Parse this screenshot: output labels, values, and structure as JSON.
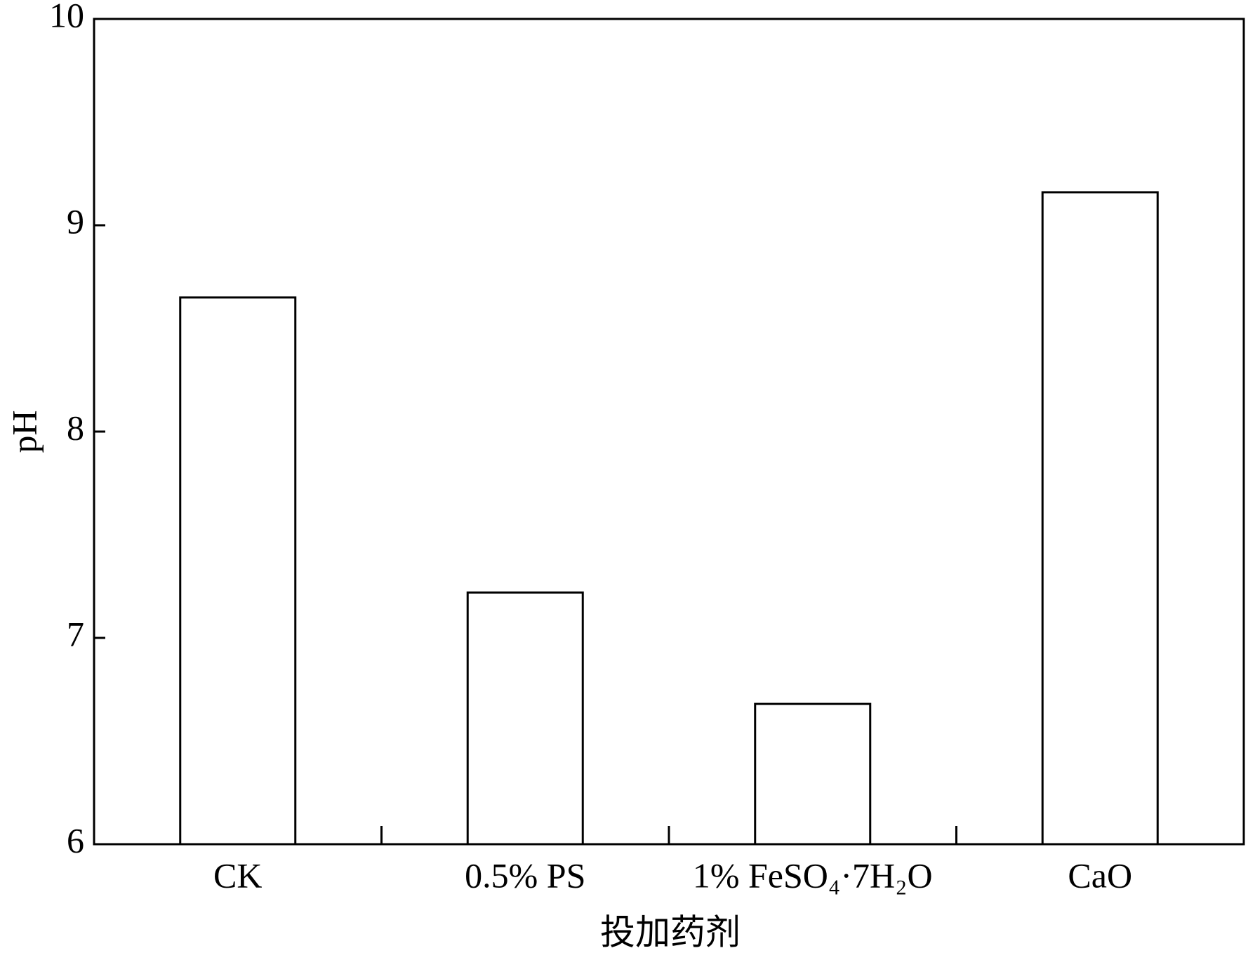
{
  "chart_data": {
    "type": "bar",
    "categories": [
      "CK",
      "0.5% PS",
      "1% FeSO₄·7H₂O",
      "CaO"
    ],
    "values": [
      8.65,
      7.22,
      6.68,
      9.16
    ],
    "color": "#ffffff",
    "x_label": "投加药剂",
    "y_label": "pH",
    "ylim": [
      6,
      10
    ],
    "yticks": [
      6,
      7,
      8,
      9,
      10
    ],
    "grid": false
  }
}
